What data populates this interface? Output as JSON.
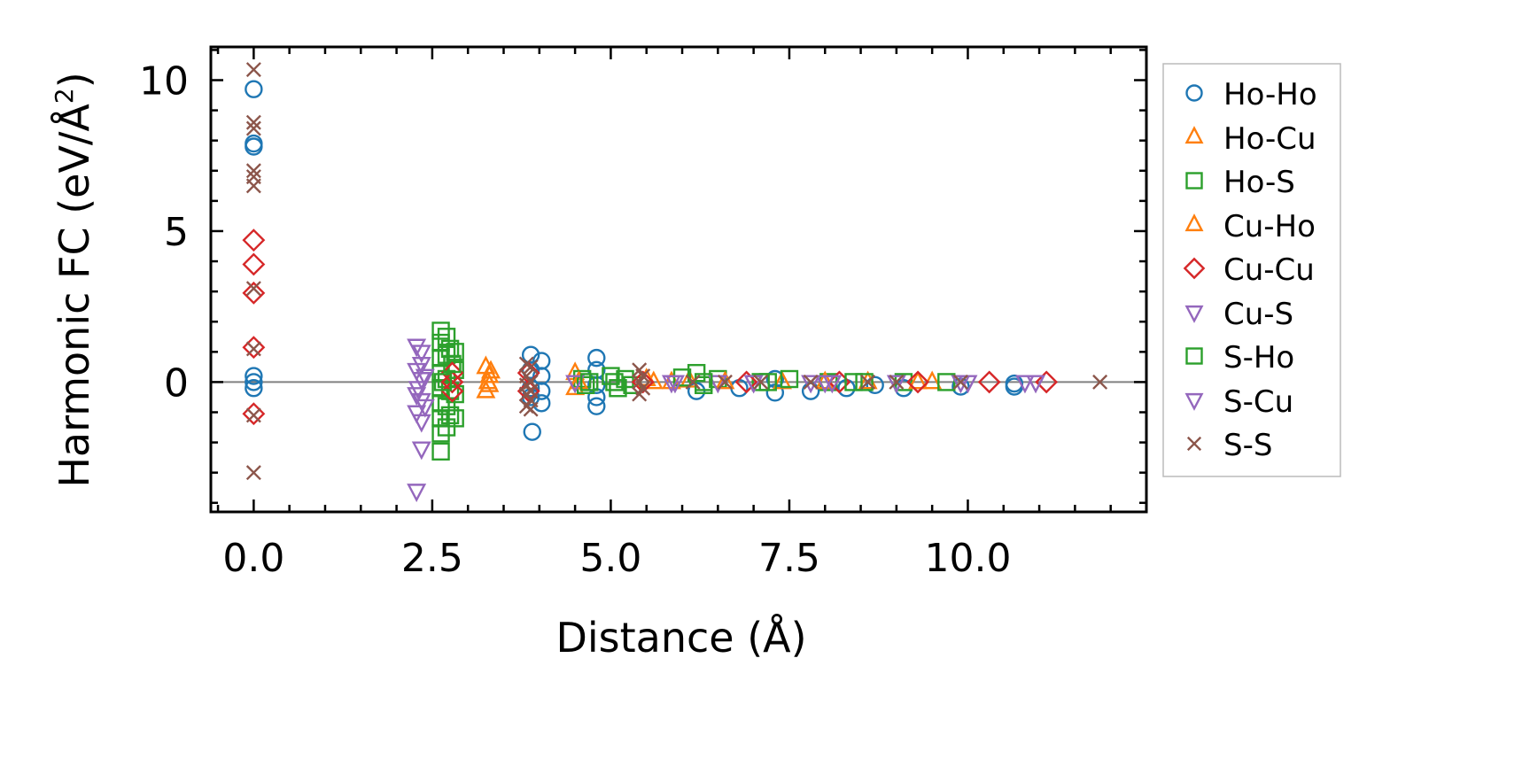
{
  "chart_data": {
    "type": "scatter",
    "title": "",
    "xlabel": "Distance (Å)",
    "ylabel_main": "Harmonic FC (eV/Å",
    "ylabel_sup": "2",
    "ylabel_close": ")",
    "xlim": [
      -0.6,
      12.5
    ],
    "ylim": [
      -4.3,
      11.1
    ],
    "xticks": [
      0.0,
      2.5,
      5.0,
      7.5,
      10.0
    ],
    "xtick_labels": [
      "0.0",
      "2.5",
      "5.0",
      "7.5",
      "10.0"
    ],
    "yticks": [
      0,
      5,
      10
    ],
    "ytick_labels": [
      "0",
      "5",
      "10"
    ],
    "zero_line": true,
    "legend_position": "outside-right",
    "series": [
      {
        "name": "Ho-Ho",
        "marker": "circle",
        "color": "#1f77b4",
        "x": [
          0,
          0,
          0,
          0,
          0,
          0,
          3.88,
          3.88,
          3.88,
          3.88,
          3.9,
          4.03,
          4.03,
          4.03,
          4.03,
          4.8,
          4.8,
          4.8,
          4.8,
          4.8,
          6.2,
          6.8,
          7.3,
          7.3,
          7.8,
          8.3,
          8.7,
          9.1,
          9.9,
          10.65,
          10.65
        ],
        "y": [
          9.7,
          7.9,
          7.8,
          0.2,
          -0.2,
          0,
          0.9,
          0.4,
          -0.2,
          -0.5,
          -1.65,
          0.7,
          0.2,
          -0.3,
          -0.7,
          0.8,
          0.4,
          -0.1,
          -0.5,
          -0.8,
          -0.3,
          -0.2,
          -0.35,
          0.1,
          -0.3,
          -0.2,
          -0.1,
          -0.2,
          -0.15,
          -0.05,
          -0.15
        ]
      },
      {
        "name": "Ho-Cu",
        "marker": "triangle-up",
        "color": "#ff7f0e",
        "x": [
          3.25,
          3.25,
          3.3,
          3.3,
          4.5,
          4.5,
          5.5,
          5.85,
          6.1,
          7.4,
          8.6,
          9.5
        ],
        "y": [
          0.5,
          -0.3,
          0.2,
          -0.1,
          0.3,
          -0.2,
          0.1,
          0.0,
          0.05,
          0.0,
          0.0,
          0.0
        ]
      },
      {
        "name": "Ho-S",
        "marker": "square",
        "color": "#2ca02c",
        "x": [
          2.62,
          2.62,
          2.62,
          2.62,
          2.62,
          2.62,
          2.62,
          2.62,
          2.62,
          2.7,
          2.7,
          2.7,
          2.7,
          2.7,
          2.75,
          2.75,
          2.75,
          2.82,
          2.82,
          2.82,
          2.82,
          4.6,
          4.65,
          5.0,
          5.1,
          5.2,
          5.3,
          6.0,
          6.2,
          6.3,
          6.5,
          7.1,
          7.5,
          8.05,
          8.55,
          9.1,
          9.7
        ],
        "y": [
          1.7,
          1.3,
          0.8,
          0.3,
          -0.2,
          -0.7,
          -1.2,
          -1.7,
          -2.3,
          1.5,
          0.9,
          0.1,
          -0.8,
          -1.5,
          1.1,
          -0.3,
          -1.1,
          1.0,
          0.4,
          -0.4,
          -1.2,
          0.1,
          -0.1,
          0.2,
          -0.2,
          0.1,
          -0.1,
          0.15,
          0.3,
          -0.1,
          0.1,
          0.0,
          0.1,
          0.0,
          0.0,
          0.0,
          0.0
        ]
      },
      {
        "name": "Cu-Ho",
        "marker": "triangle-up",
        "color": "#ff7f0e",
        "x": [
          3.28,
          3.32,
          4.55,
          5.6,
          6.6,
          8.0,
          9.3
        ],
        "y": [
          0.0,
          0.35,
          0.0,
          0.0,
          0.0,
          0.0,
          0.0
        ]
      },
      {
        "name": "Cu-Cu",
        "marker": "diamond",
        "color": "#d62728",
        "x": [
          0,
          0,
          0,
          0,
          0,
          2.78,
          2.78,
          2.78,
          3.85,
          3.85,
          5.45,
          6.9,
          8.2,
          9.3,
          10.3,
          11.1
        ],
        "y": [
          4.7,
          3.9,
          2.95,
          1.15,
          -1.05,
          0.3,
          0.0,
          -0.3,
          0.3,
          -0.3,
          0.0,
          0.0,
          0.0,
          0.0,
          0.0,
          0.0
        ]
      },
      {
        "name": "Cu-S",
        "marker": "triangle-down",
        "color": "#9467bd",
        "x": [
          2.28,
          2.28,
          2.28,
          2.28,
          2.28,
          2.35,
          2.35,
          2.35,
          2.35,
          2.35,
          2.35,
          2.4,
          4.5,
          5.85,
          6.5,
          7.0,
          7.8,
          8.1,
          9.0,
          9.9,
          10.8
        ],
        "y": [
          1.2,
          0.4,
          -0.4,
          -1.0,
          -3.6,
          1.0,
          0.6,
          0.1,
          -0.6,
          -1.3,
          -2.2,
          0.2,
          0.0,
          0.0,
          0.0,
          0.0,
          0.0,
          0.0,
          0.0,
          0.0,
          0.0
        ]
      },
      {
        "name": "S-Ho",
        "marker": "square",
        "color": "#2ca02c",
        "x": [
          2.65,
          2.78,
          4.7,
          5.05,
          6.3,
          7.2,
          8.4
        ],
        "y": [
          0.0,
          0.6,
          0.0,
          0.0,
          0.0,
          0.0,
          0.0
        ]
      },
      {
        "name": "S-Cu",
        "marker": "triangle-down",
        "color": "#9467bd",
        "x": [
          2.3,
          2.4,
          5.9,
          7.0,
          8.0,
          10.0,
          10.95
        ],
        "y": [
          -0.2,
          -0.8,
          0.0,
          0.0,
          0.0,
          0.0,
          0.0
        ]
      },
      {
        "name": "S-S",
        "marker": "x",
        "color": "#8c564b",
        "x": [
          0,
          0,
          0,
          0,
          0,
          0,
          0,
          0,
          0,
          0,
          3.82,
          3.82,
          3.82,
          3.82,
          3.82,
          3.88,
          3.88,
          3.88,
          3.88,
          3.88,
          5.4,
          5.4,
          5.4,
          5.45,
          5.45,
          6.15,
          6.6,
          7.1,
          7.8,
          8.6,
          9.0,
          9.9,
          11.85
        ],
        "y": [
          10.35,
          8.6,
          8.4,
          7.0,
          6.8,
          6.5,
          3.1,
          1.1,
          -1.1,
          -3.0,
          0.6,
          0.2,
          -0.1,
          -0.4,
          -0.8,
          0.5,
          0.0,
          -0.3,
          -0.6,
          -0.9,
          0.4,
          0.0,
          -0.4,
          0.2,
          -0.2,
          0.0,
          0.0,
          0.0,
          0.0,
          0.0,
          0.0,
          0.0,
          0.0
        ]
      }
    ]
  }
}
